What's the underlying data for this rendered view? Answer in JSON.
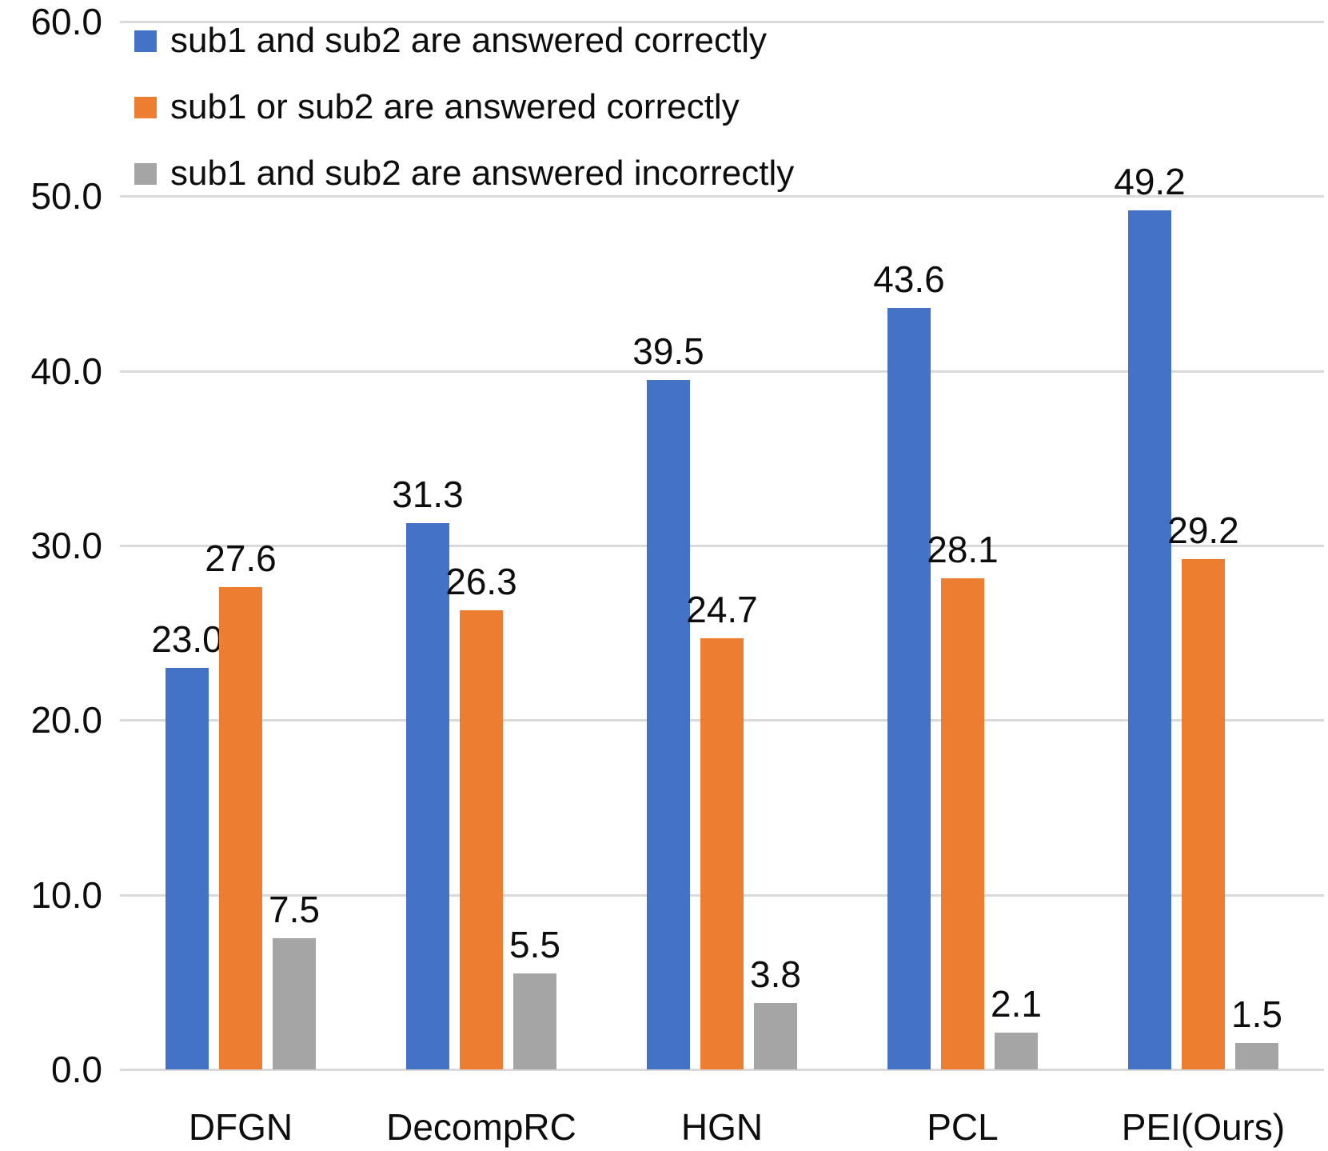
{
  "chart_data": {
    "type": "bar",
    "title": "",
    "xlabel": "",
    "ylabel": "",
    "categories": [
      "DFGN",
      "DecompRC",
      "HGN",
      "PCL",
      "PEI(Ours)"
    ],
    "series": [
      {
        "name": "sub1 and sub2 are answered correctly",
        "color": "#4472C4",
        "values": [
          23.0,
          31.3,
          39.5,
          43.6,
          49.2
        ],
        "labels": [
          "23.0",
          "31.3",
          "39.5",
          "43.6",
          "49.2"
        ]
      },
      {
        "name": "sub1 or sub2 are answered correctly",
        "color": "#ED7D31",
        "values": [
          27.6,
          26.3,
          24.7,
          28.1,
          29.2
        ],
        "labels": [
          "27.6",
          "26.3",
          "24.7",
          "28.1",
          "29.2"
        ]
      },
      {
        "name": "sub1 and sub2 are answered incorrectly",
        "color": "#A5A5A5",
        "values": [
          7.5,
          5.5,
          3.8,
          2.1,
          1.5
        ],
        "labels": [
          "7.5",
          "5.5",
          "3.8",
          "2.1",
          "1.5"
        ]
      }
    ],
    "ylim": [
      0,
      60
    ],
    "ytick_step": 10,
    "ytick_labels": [
      "0.0",
      "10.0",
      "20.0",
      "30.0",
      "40.0",
      "50.0",
      "60.0"
    ],
    "grid": true,
    "legend_position": "top-left",
    "colors": {
      "gridline": "#D9D9D9",
      "axis_line": "#D9D9D9",
      "text": "#0D0D0D",
      "background": "#FFFFFF"
    }
  }
}
